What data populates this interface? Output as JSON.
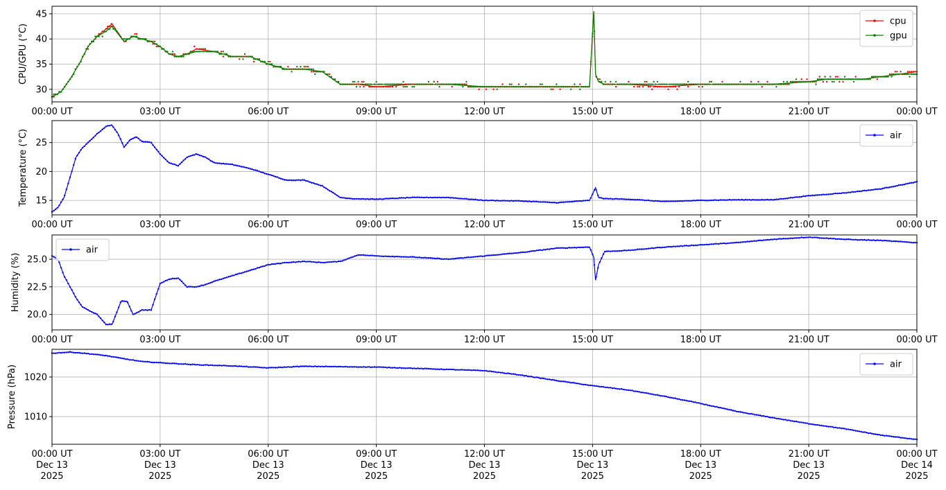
{
  "colors": {
    "cpu": "#ff0000",
    "gpu": "#008000",
    "air": "#0000ff",
    "grid": "#b0b0b0",
    "frame": "#000000"
  },
  "x_ticks": [
    "00:00 UT",
    "03:00 UT",
    "06:00 UT",
    "09:00 UT",
    "12:00 UT",
    "15:00 UT",
    "18:00 UT",
    "21:00 UT",
    "00:00 UT"
  ],
  "x_date_lines": [
    "Dec 13",
    "Dec 13",
    "Dec 13",
    "Dec 13",
    "Dec 13",
    "Dec 13",
    "Dec 13",
    "Dec 13",
    "Dec 14"
  ],
  "x_year_lines": [
    "2025",
    "2025",
    "2025",
    "2025",
    "2025",
    "2025",
    "2025",
    "2025",
    "2025"
  ],
  "chart_data": [
    {
      "type": "line",
      "ylabel": "CPU/GPU (°C)",
      "ylim": [
        27.5,
        46.5
      ],
      "yticks": [
        30,
        35,
        40,
        45
      ],
      "xlim": [
        "2025-12-13 00:00",
        "2025-12-14 00:00"
      ],
      "grid": true,
      "legend": "top-right",
      "series": [
        {
          "name": "cpu",
          "x": [
            "00:00",
            "00:15",
            "00:30",
            "00:45",
            "01:00",
            "01:15",
            "01:30",
            "01:40",
            "02:00",
            "02:15",
            "02:30",
            "02:45",
            "03:00",
            "03:15",
            "03:30",
            "03:45",
            "04:00",
            "04:30",
            "05:00",
            "05:30",
            "06:00",
            "06:30",
            "07:00",
            "07:30",
            "08:00",
            "08:30",
            "09:00",
            "10:00",
            "11:00",
            "12:00",
            "13:00",
            "14:00",
            "14:55",
            "15:02",
            "15:05",
            "15:10",
            "15:20",
            "16:00",
            "17:00",
            "18:00",
            "19:00",
            "20:00",
            "21:00",
            "21:30",
            "22:00",
            "22:30",
            "23:00",
            "23:30",
            "24:00"
          ],
          "y": [
            28.5,
            29.5,
            32,
            35,
            38.5,
            40.5,
            42,
            43,
            39.5,
            40.5,
            40,
            39.5,
            38.5,
            37,
            36.5,
            37,
            38,
            37.5,
            36.5,
            36.5,
            35,
            34,
            34,
            33.5,
            31,
            31,
            30.5,
            31,
            31,
            30.5,
            30.5,
            30.5,
            30.5,
            45.5,
            33,
            31.5,
            31,
            31,
            30.5,
            31,
            31,
            31,
            31.5,
            32,
            32,
            32,
            32.5,
            33,
            33.5
          ]
        },
        {
          "name": "gpu",
          "x": [
            "00:00",
            "00:15",
            "00:30",
            "00:45",
            "01:00",
            "01:15",
            "01:30",
            "01:40",
            "02:00",
            "02:15",
            "02:30",
            "02:45",
            "03:00",
            "03:15",
            "03:30",
            "03:45",
            "04:00",
            "04:30",
            "05:00",
            "05:30",
            "06:00",
            "06:30",
            "07:00",
            "07:30",
            "08:00",
            "08:30",
            "09:00",
            "10:00",
            "11:00",
            "12:00",
            "13:00",
            "14:00",
            "14:55",
            "15:02",
            "15:05",
            "15:10",
            "15:20",
            "16:00",
            "17:00",
            "18:00",
            "19:00",
            "20:00",
            "21:00",
            "21:30",
            "22:00",
            "22:30",
            "23:00",
            "23:30",
            "24:00"
          ],
          "y": [
            28.5,
            29.5,
            32,
            35,
            38.5,
            40.5,
            41.5,
            42.5,
            39.5,
            40.5,
            40,
            39.5,
            38.5,
            37,
            36.5,
            37,
            37.5,
            37.5,
            36.5,
            36.5,
            35,
            34,
            34,
            33.5,
            31,
            31,
            31,
            31,
            31,
            30.5,
            30.5,
            30.5,
            30.5,
            45.5,
            33,
            31.5,
            31,
            31,
            31,
            31,
            31,
            31,
            31.5,
            32,
            32,
            32,
            32.5,
            33,
            33
          ]
        }
      ]
    },
    {
      "type": "line",
      "ylabel": "Temperature (°C)",
      "ylim": [
        12.5,
        28.8
      ],
      "yticks": [
        15,
        20,
        25
      ],
      "xlim": [
        "2025-12-13 00:00",
        "2025-12-14 00:00"
      ],
      "grid": true,
      "legend": "top-right",
      "series": [
        {
          "name": "air",
          "x": [
            "00:00",
            "00:10",
            "00:20",
            "00:30",
            "00:40",
            "00:50",
            "01:00",
            "01:15",
            "01:30",
            "01:40",
            "01:50",
            "02:00",
            "02:10",
            "02:20",
            "02:30",
            "02:45",
            "03:00",
            "03:15",
            "03:30",
            "03:45",
            "04:00",
            "04:15",
            "04:30",
            "05:00",
            "05:30",
            "06:00",
            "06:30",
            "07:00",
            "07:30",
            "08:00",
            "08:20",
            "09:00",
            "10:00",
            "11:00",
            "12:00",
            "13:00",
            "14:00",
            "14:55",
            "15:05",
            "15:10",
            "15:20",
            "16:00",
            "17:00",
            "18:00",
            "19:00",
            "20:00",
            "21:00",
            "22:00",
            "23:00",
            "24:00"
          ],
          "y": [
            13,
            13.8,
            15.5,
            19,
            22.5,
            24,
            25,
            26.5,
            27.8,
            28,
            26.5,
            24.2,
            25.5,
            26,
            25.2,
            25,
            23,
            21.5,
            21,
            22.5,
            23,
            22.5,
            21.5,
            21.2,
            20.5,
            19.5,
            18.5,
            18.5,
            17.5,
            15.5,
            15.3,
            15.2,
            15.5,
            15.5,
            15,
            14.9,
            14.6,
            15,
            17.2,
            15.5,
            15.3,
            15.2,
            14.8,
            15,
            15.1,
            15.1,
            15.8,
            16.3,
            17,
            18.2
          ]
        }
      ]
    },
    {
      "type": "line",
      "ylabel": "Humidity (%)",
      "ylim": [
        18.6,
        27.2
      ],
      "yticks": [
        20.0,
        22.5,
        25.0
      ],
      "ytick_labels": [
        "20.0",
        "22.5",
        "25.0"
      ],
      "xlim": [
        "2025-12-13 00:00",
        "2025-12-14 00:00"
      ],
      "grid": true,
      "legend": "top-left",
      "series": [
        {
          "name": "air",
          "x": [
            "00:00",
            "00:10",
            "00:20",
            "00:30",
            "00:40",
            "00:50",
            "01:00",
            "01:15",
            "01:30",
            "01:40",
            "01:55",
            "02:05",
            "02:15",
            "02:30",
            "02:45",
            "03:00",
            "03:15",
            "03:30",
            "03:45",
            "04:00",
            "04:15",
            "04:30",
            "05:00",
            "05:30",
            "06:00",
            "06:30",
            "07:00",
            "07:30",
            "08:00",
            "08:30",
            "09:00",
            "10:00",
            "11:00",
            "12:00",
            "13:00",
            "14:00",
            "14:55",
            "15:02",
            "15:05",
            "15:10",
            "15:20",
            "16:00",
            "17:00",
            "18:00",
            "19:00",
            "20:00",
            "21:00",
            "22:00",
            "23:00",
            "24:00"
          ],
          "y": [
            25.3,
            25,
            23.5,
            22.5,
            21.5,
            20.7,
            20.4,
            20,
            19.1,
            19.1,
            21.2,
            21.2,
            20,
            20.4,
            20.4,
            22.8,
            23.2,
            23.3,
            22.5,
            22.5,
            22.7,
            23,
            23.5,
            24,
            24.5,
            24.7,
            24.8,
            24.7,
            24.8,
            25.4,
            25.3,
            25.2,
            25,
            25.3,
            25.6,
            26,
            26.1,
            25.2,
            23.1,
            24.5,
            25.7,
            25.8,
            26.1,
            26.3,
            26.5,
            26.8,
            27,
            26.8,
            26.7,
            26.5
          ]
        }
      ]
    },
    {
      "type": "line",
      "ylabel": "Pressure (hPa)",
      "ylim": [
        1003,
        1027
      ],
      "yticks": [
        1010,
        1020
      ],
      "xlim": [
        "2025-12-13 00:00",
        "2025-12-14 00:00"
      ],
      "grid": true,
      "legend": "top-right",
      "series": [
        {
          "name": "air",
          "x": [
            "00:00",
            "00:30",
            "01:00",
            "01:30",
            "02:00",
            "02:30",
            "03:00",
            "04:00",
            "05:00",
            "06:00",
            "07:00",
            "08:00",
            "09:00",
            "10:00",
            "11:00",
            "12:00",
            "13:00",
            "14:00",
            "15:00",
            "16:00",
            "17:00",
            "18:00",
            "19:00",
            "20:00",
            "21:00",
            "22:00",
            "23:00",
            "24:00"
          ],
          "y": [
            1026,
            1026.3,
            1025.9,
            1025.4,
            1024.6,
            1023.9,
            1023.6,
            1023.1,
            1022.8,
            1022.3,
            1022.7,
            1022.6,
            1022.5,
            1022.2,
            1021.9,
            1021.6,
            1020.5,
            1019.1,
            1017.8,
            1016.7,
            1015.1,
            1013.3,
            1011.3,
            1009.7,
            1008.2,
            1006.9,
            1005.3,
            1004.2
          ]
        }
      ]
    }
  ]
}
